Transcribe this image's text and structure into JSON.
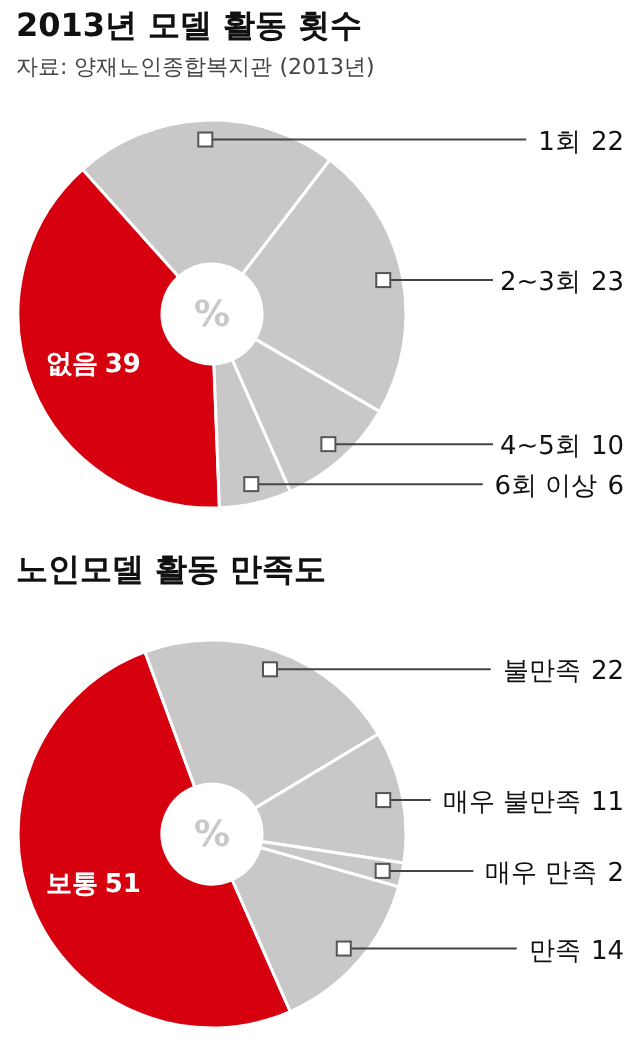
{
  "chart_data": [
    {
      "type": "donut",
      "title": "2013년 모델 활동 횟수",
      "subtitle": "자료: 양재노인종합복지관 (2013년)",
      "categories": [
        "없음",
        "1회",
        "2~3회",
        "4~5회",
        "6회 이상"
      ],
      "values": [
        39,
        22,
        23,
        10,
        6
      ],
      "colors": [
        "#d7000f",
        "#c8c8c8",
        "#c8c8c8",
        "#c8c8c8",
        "#c8c8c8"
      ],
      "data_labels": true,
      "annotations": [
        "%"
      ]
    },
    {
      "type": "donut",
      "title": "노인모델 활동 만족도",
      "categories": [
        "보통",
        "불만족",
        "매우 불만족",
        "매우 만족",
        "만족"
      ],
      "values": [
        51,
        22,
        11,
        2,
        14
      ],
      "colors": [
        "#d7000f",
        "#c8c8c8",
        "#c8c8c8",
        "#c8c8c8",
        "#c8c8c8"
      ],
      "data_labels": true,
      "annotations": [
        "%"
      ]
    }
  ]
}
